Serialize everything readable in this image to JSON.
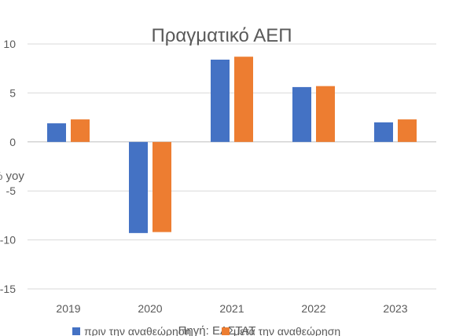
{
  "chart_data": {
    "type": "bar",
    "title": "Πραγματικό ΑΕΠ",
    "ylabel": "% yoy",
    "xlabel": "",
    "source_note": "Πηγή: ΕΛΣΤΑΤ",
    "categories": [
      "2019",
      "2020",
      "2021",
      "2022",
      "2023"
    ],
    "series": [
      {
        "name": "πριν την αναθεώρηση",
        "color": "#4472c4",
        "values": [
          1.9,
          -9.3,
          8.4,
          5.6,
          2.0
        ]
      },
      {
        "name": "μετά την αναθεώρηση",
        "color": "#ed7d31",
        "values": [
          2.3,
          -9.2,
          8.7,
          5.7,
          2.3
        ]
      }
    ],
    "ylim": [
      -15,
      10
    ],
    "yticks": [
      "-15",
      "-10",
      "-5",
      "0",
      "5",
      "10"
    ],
    "grid": true,
    "legend_position": "bottom"
  }
}
